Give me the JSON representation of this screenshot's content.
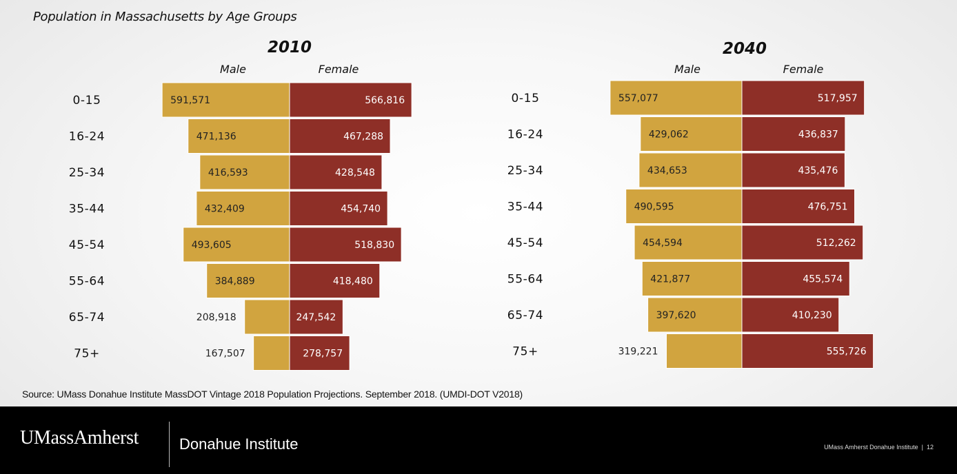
{
  "title": "Population in Massachusetts by Age Groups",
  "source": "Source: UMass Donahue Institute MassDOT Vintage 2018 Population Projections. September 2018. (UMDI-DOT V2018)",
  "footer": {
    "logo": "UMassAmherst",
    "institute": "Donahue Institute",
    "note": "UMass Amherst Donahue Institute",
    "page_number": "12"
  },
  "colors": {
    "male": "#d1a43f",
    "female": "#8e2f27",
    "background": "#f3f3f3",
    "footer": "#000000"
  },
  "chart_data": [
    {
      "type": "bar",
      "title": "2010",
      "categories": [
        "0-15",
        "16-24",
        "25-34",
        "35-44",
        "45-54",
        "55-64",
        "65-74",
        "75+"
      ],
      "series": [
        {
          "name": "Male",
          "values": [
            591571,
            471136,
            416593,
            432409,
            493605,
            384889,
            208918,
            167507
          ],
          "labels": [
            "591,571",
            "471,136",
            "416,593",
            "432,409",
            "493,605",
            "384,889",
            "208,918",
            "167,507"
          ]
        },
        {
          "name": "Female",
          "values": [
            566816,
            467288,
            428548,
            454740,
            518830,
            418480,
            247542,
            278757
          ],
          "labels": [
            "566,816",
            "467,288",
            "428,548",
            "454,740",
            "518,830",
            "418,480",
            "247,542",
            "278,757"
          ]
        }
      ]
    },
    {
      "type": "bar",
      "title": "2040",
      "categories": [
        "0-15",
        "16-24",
        "25-34",
        "35-44",
        "45-54",
        "55-64",
        "65-74",
        "75+"
      ],
      "series": [
        {
          "name": "Male",
          "values": [
            557077,
            429062,
            434653,
            490595,
            454594,
            421877,
            397620,
            319221
          ],
          "labels": [
            "557,077",
            "429,062",
            "434,653",
            "490,595",
            "454,594",
            "421,877",
            "397,620",
            "319,221"
          ]
        },
        {
          "name": "Female",
          "values": [
            517957,
            436837,
            435476,
            476751,
            512262,
            455574,
            410230,
            555726
          ],
          "labels": [
            "517,957",
            "436,837",
            "435,476",
            "476,751",
            "512,262",
            "455,574",
            "410,230",
            "555,726"
          ]
        }
      ]
    }
  ]
}
